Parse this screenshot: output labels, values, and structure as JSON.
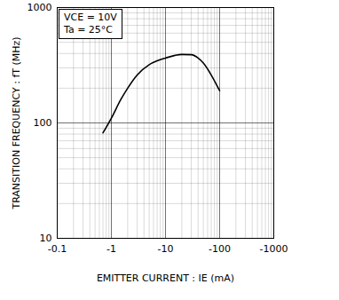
{
  "chart_data": {
    "type": "line",
    "xlabel": "EMITTER CURRENT : IE (mA)",
    "ylabel": "TRANSITION FREQUENCY : fT (MHz)",
    "annotations": [
      "VCE = 10V",
      "Ta = 25°C"
    ],
    "x": [
      -0.7,
      -1,
      -1.5,
      -2,
      -3,
      -5,
      -7,
      -10,
      -15,
      -20,
      -30,
      -40,
      -50,
      -70,
      -100
    ],
    "values": [
      82,
      110,
      160,
      200,
      260,
      320,
      345,
      365,
      385,
      392,
      390,
      365,
      330,
      260,
      190
    ],
    "color": "#000000",
    "xlim": [
      -0.1,
      -1000
    ],
    "ylim": [
      10,
      1000
    ],
    "xticks": [
      -0.1,
      -1,
      -10,
      -100,
      -1000
    ],
    "yticks": [
      10,
      100,
      1000
    ],
    "log": true,
    "grid": true
  }
}
